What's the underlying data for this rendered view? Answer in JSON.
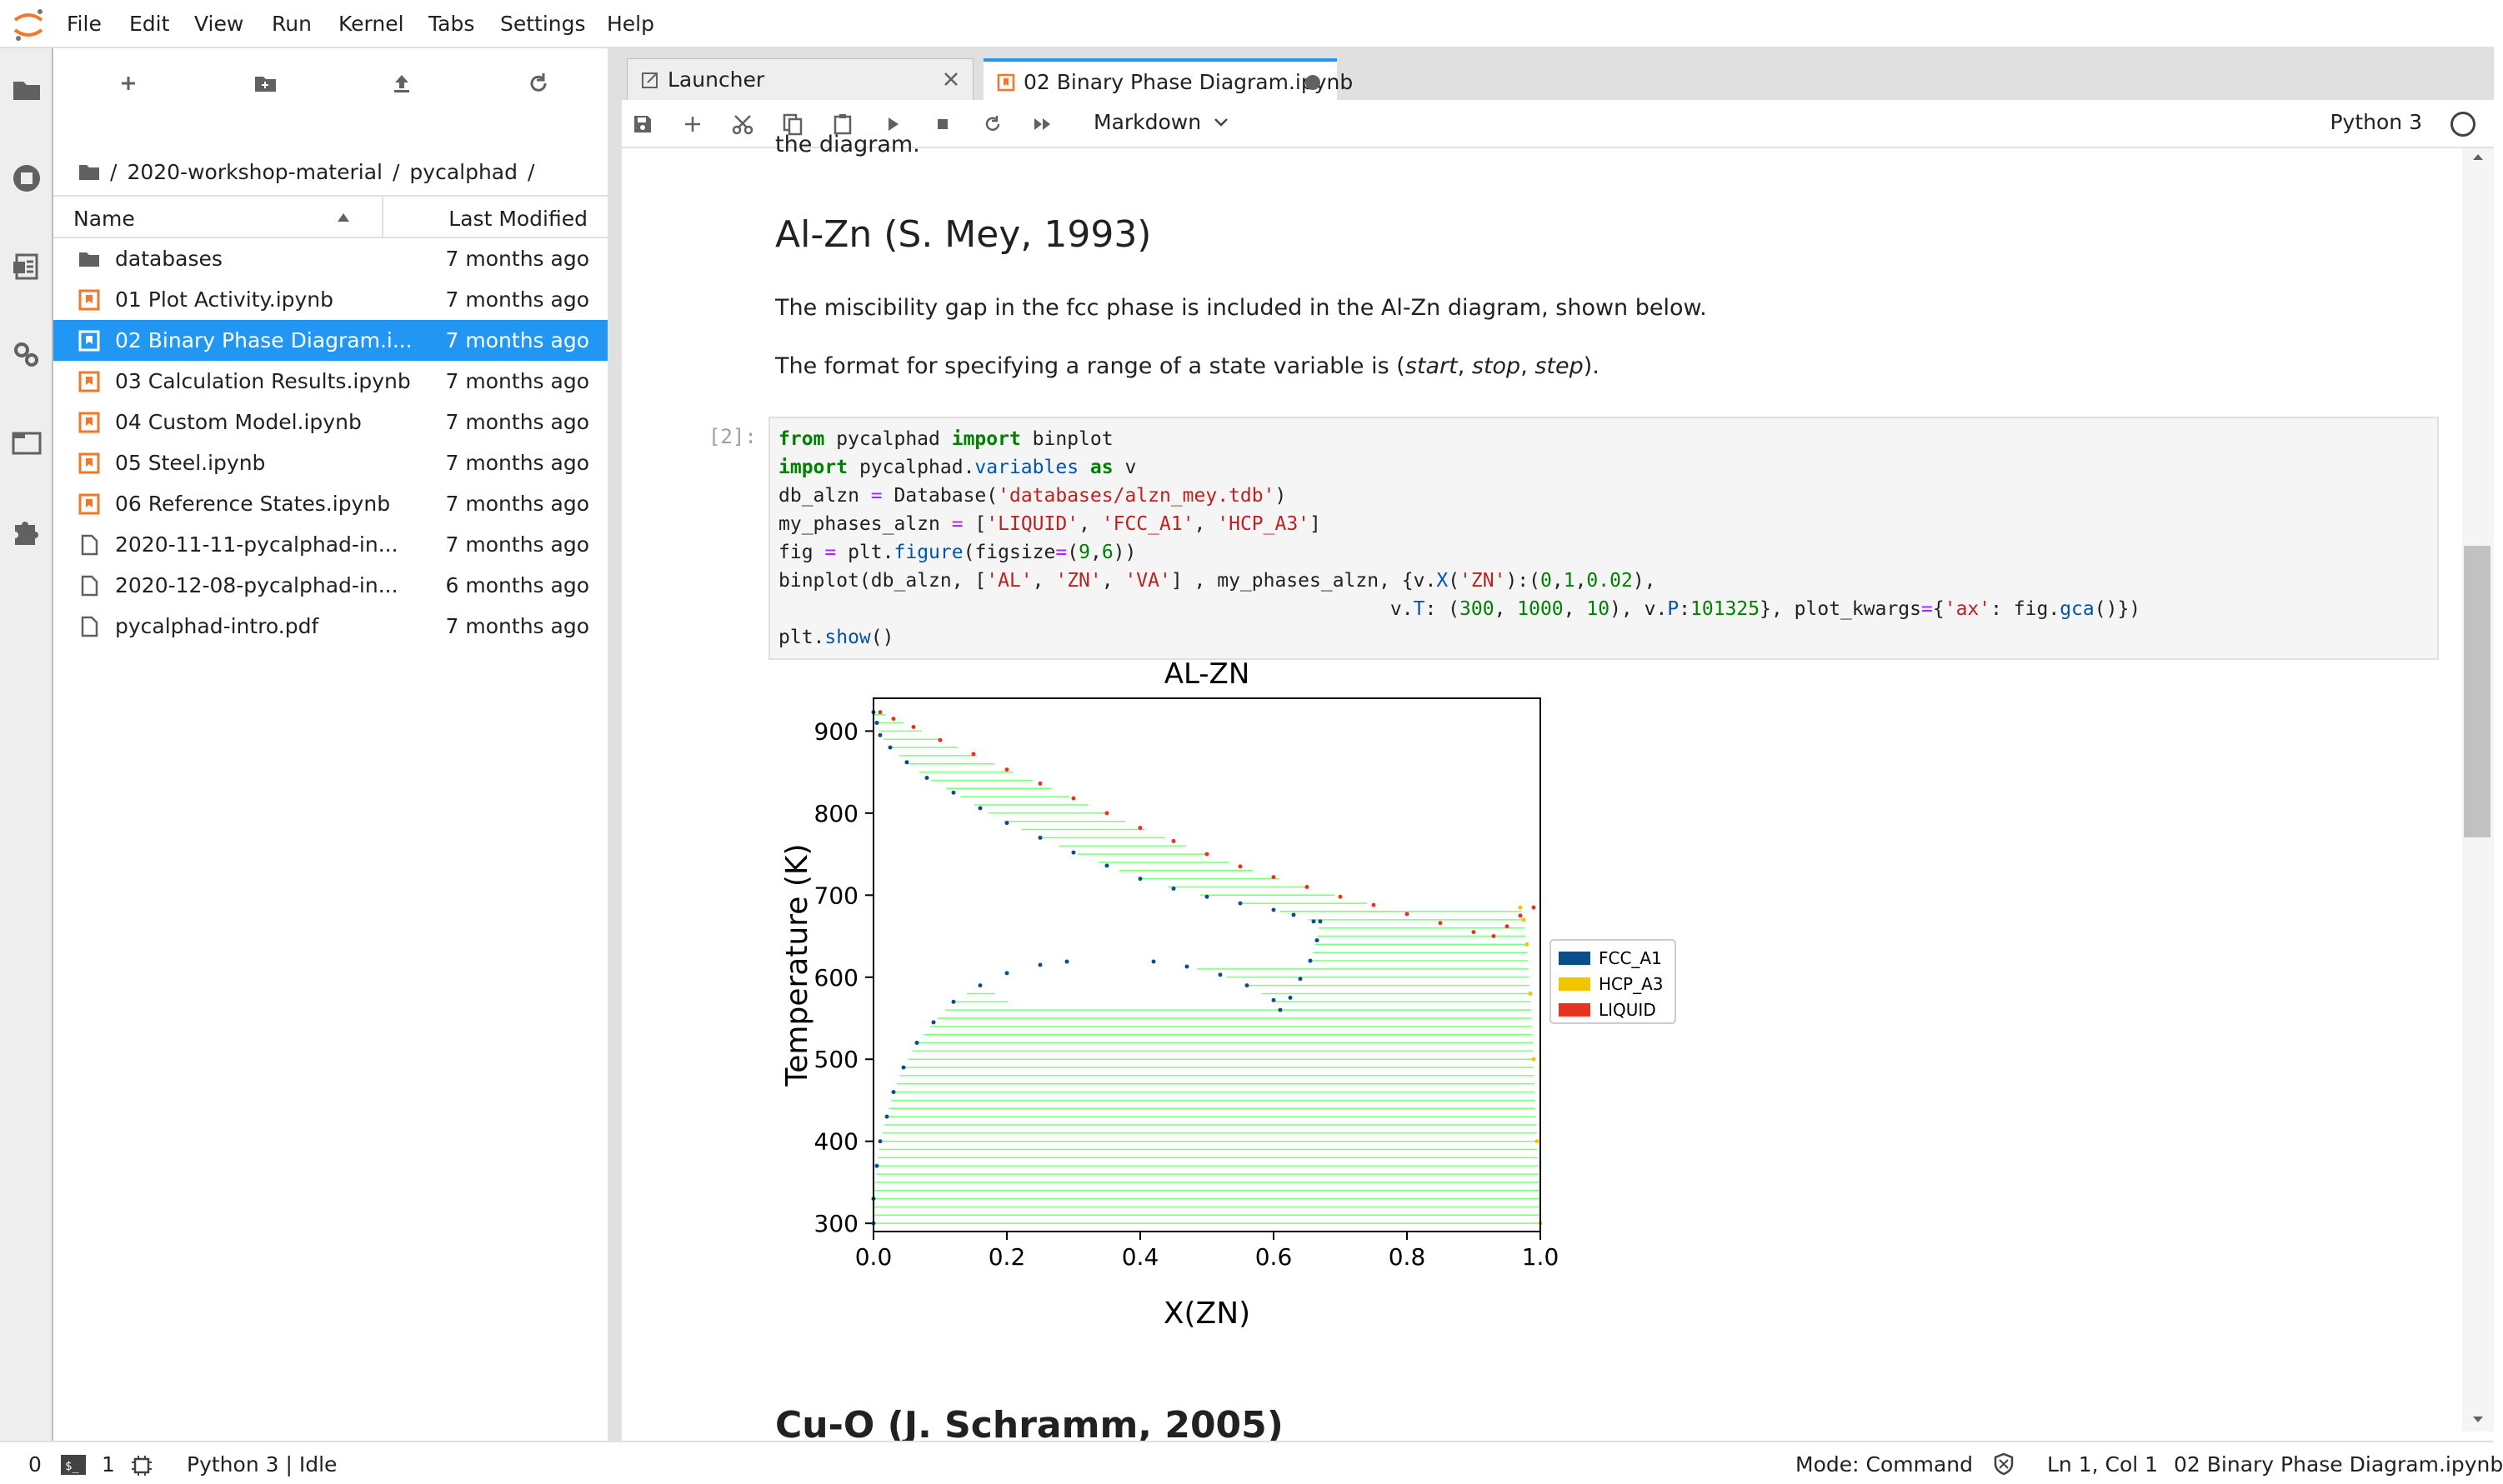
{
  "menubar": {
    "items": [
      "File",
      "Edit",
      "View",
      "Run",
      "Kernel",
      "Tabs",
      "Settings",
      "Help"
    ]
  },
  "activity_bar": {
    "icons": [
      "folder-icon",
      "running-icon",
      "commands-icon",
      "property-inspector-icon",
      "tabs-icon",
      "extensions-icon"
    ]
  },
  "file_browser": {
    "breadcrumb": [
      "/",
      "2020-workshop-material",
      "/",
      "pycalphad",
      "/"
    ],
    "columns": {
      "name": "Name",
      "modified": "Last Modified"
    },
    "files": [
      {
        "name": "databases",
        "modified": "7 months ago",
        "type": "folder"
      },
      {
        "name": "01 Plot Activity.ipynb",
        "modified": "7 months ago",
        "type": "notebook"
      },
      {
        "name": "02 Binary Phase Diagram.i...",
        "modified": "7 months ago",
        "type": "notebook",
        "selected": true
      },
      {
        "name": "03 Calculation Results.ipynb",
        "modified": "7 months ago",
        "type": "notebook"
      },
      {
        "name": "04 Custom Model.ipynb",
        "modified": "7 months ago",
        "type": "notebook"
      },
      {
        "name": "05 Steel.ipynb",
        "modified": "7 months ago",
        "type": "notebook"
      },
      {
        "name": "06 Reference States.ipynb",
        "modified": "7 months ago",
        "type": "notebook"
      },
      {
        "name": "2020-11-11-pycalphad-in...",
        "modified": "7 months ago",
        "type": "file"
      },
      {
        "name": "2020-12-08-pycalphad-in...",
        "modified": "6 months ago",
        "type": "file"
      },
      {
        "name": "pycalphad-intro.pdf",
        "modified": "7 months ago",
        "type": "file"
      }
    ]
  },
  "tabs": [
    {
      "label": "Launcher"
    },
    {
      "label": "02 Binary Phase Diagram.ipynb"
    }
  ],
  "toolbar": {
    "cell_type": "Markdown",
    "kernel": "Python 3"
  },
  "notebook": {
    "cut_text": "the diagram.",
    "heading": "Al-Zn (S. Mey, 1993)",
    "paragraph1": "The miscibility gap in the fcc phase is included in the Al-Zn diagram, shown below.",
    "paragraph2_prefix": "The format for specifying a range of a state variable is (",
    "paragraph2_italic1": "start",
    "paragraph2_sep1": ", ",
    "paragraph2_italic2": "stop",
    "paragraph2_sep2": ", ",
    "paragraph2_italic3": "step",
    "paragraph2_suffix": ").",
    "prompt": "[2]:",
    "next_heading": "Cu-O (J. Schramm, 2005)"
  },
  "chart_data": {
    "type": "scatter",
    "title": "AL-ZN",
    "xlabel": "X(ZN)",
    "ylabel": "Temperature (K)",
    "xlim": [
      0.0,
      1.0
    ],
    "ylim": [
      290,
      940
    ],
    "xticks": [
      "0.0",
      "0.2",
      "0.4",
      "0.6",
      "0.8",
      "1.0"
    ],
    "yticks": [
      "300",
      "400",
      "500",
      "600",
      "700",
      "800",
      "900"
    ],
    "legend": {
      "placement": "right",
      "entries": [
        {
          "name": "FCC_A1",
          "color": "#0b4f8a"
        },
        {
          "name": "HCP_A3",
          "color": "#f2c500"
        },
        {
          "name": "LIQUID",
          "color": "#e8331e"
        }
      ]
    },
    "tieline_color": "#7cfc7c",
    "boundaries": {
      "liquidus": [
        [
          0.01,
          923
        ],
        [
          0.03,
          915
        ],
        [
          0.06,
          905
        ],
        [
          0.1,
          889
        ],
        [
          0.15,
          872
        ],
        [
          0.2,
          853
        ],
        [
          0.25,
          836
        ],
        [
          0.3,
          818
        ],
        [
          0.35,
          800
        ],
        [
          0.4,
          782
        ],
        [
          0.45,
          766
        ],
        [
          0.5,
          750
        ],
        [
          0.55,
          735
        ],
        [
          0.6,
          722
        ],
        [
          0.65,
          710
        ],
        [
          0.7,
          698
        ],
        [
          0.75,
          688
        ],
        [
          0.8,
          677
        ],
        [
          0.85,
          666
        ],
        [
          0.9,
          655
        ],
        [
          0.93,
          650
        ],
        [
          0.95,
          662
        ],
        [
          0.97,
          675
        ],
        [
          0.99,
          685
        ]
      ],
      "solidus": [
        [
          0.0,
          923
        ],
        [
          0.005,
          910
        ],
        [
          0.01,
          895
        ],
        [
          0.025,
          880
        ],
        [
          0.05,
          862
        ],
        [
          0.08,
          843
        ],
        [
          0.12,
          825
        ],
        [
          0.16,
          806
        ],
        [
          0.2,
          788
        ],
        [
          0.25,
          770
        ],
        [
          0.3,
          752
        ],
        [
          0.35,
          736
        ],
        [
          0.4,
          720
        ],
        [
          0.45,
          708
        ],
        [
          0.5,
          698
        ],
        [
          0.55,
          690
        ],
        [
          0.6,
          682
        ],
        [
          0.63,
          676
        ],
        [
          0.66,
          668
        ]
      ],
      "miscibility_left": [
        [
          0.0,
          300
        ],
        [
          0.0,
          330
        ],
        [
          0.005,
          370
        ],
        [
          0.01,
          400
        ],
        [
          0.02,
          430
        ],
        [
          0.03,
          460
        ],
        [
          0.045,
          490
        ],
        [
          0.065,
          520
        ],
        [
          0.09,
          545
        ],
        [
          0.12,
          570
        ],
        [
          0.16,
          590
        ],
        [
          0.2,
          605
        ],
        [
          0.25,
          615
        ],
        [
          0.29,
          619
        ]
      ],
      "miscibility_right": [
        [
          0.42,
          619
        ],
        [
          0.47,
          613
        ],
        [
          0.52,
          603
        ],
        [
          0.56,
          590
        ],
        [
          0.6,
          572
        ],
        [
          0.61,
          560
        ],
        [
          0.625,
          575
        ],
        [
          0.64,
          598
        ],
        [
          0.655,
          620
        ],
        [
          0.665,
          645
        ],
        [
          0.67,
          668
        ]
      ],
      "zn_solvus": [
        [
          1.0,
          300
        ],
        [
          0.995,
          400
        ],
        [
          0.99,
          500
        ],
        [
          0.985,
          580
        ],
        [
          0.98,
          640
        ],
        [
          0.975,
          670
        ],
        [
          0.97,
          685
        ]
      ]
    }
  }
}
